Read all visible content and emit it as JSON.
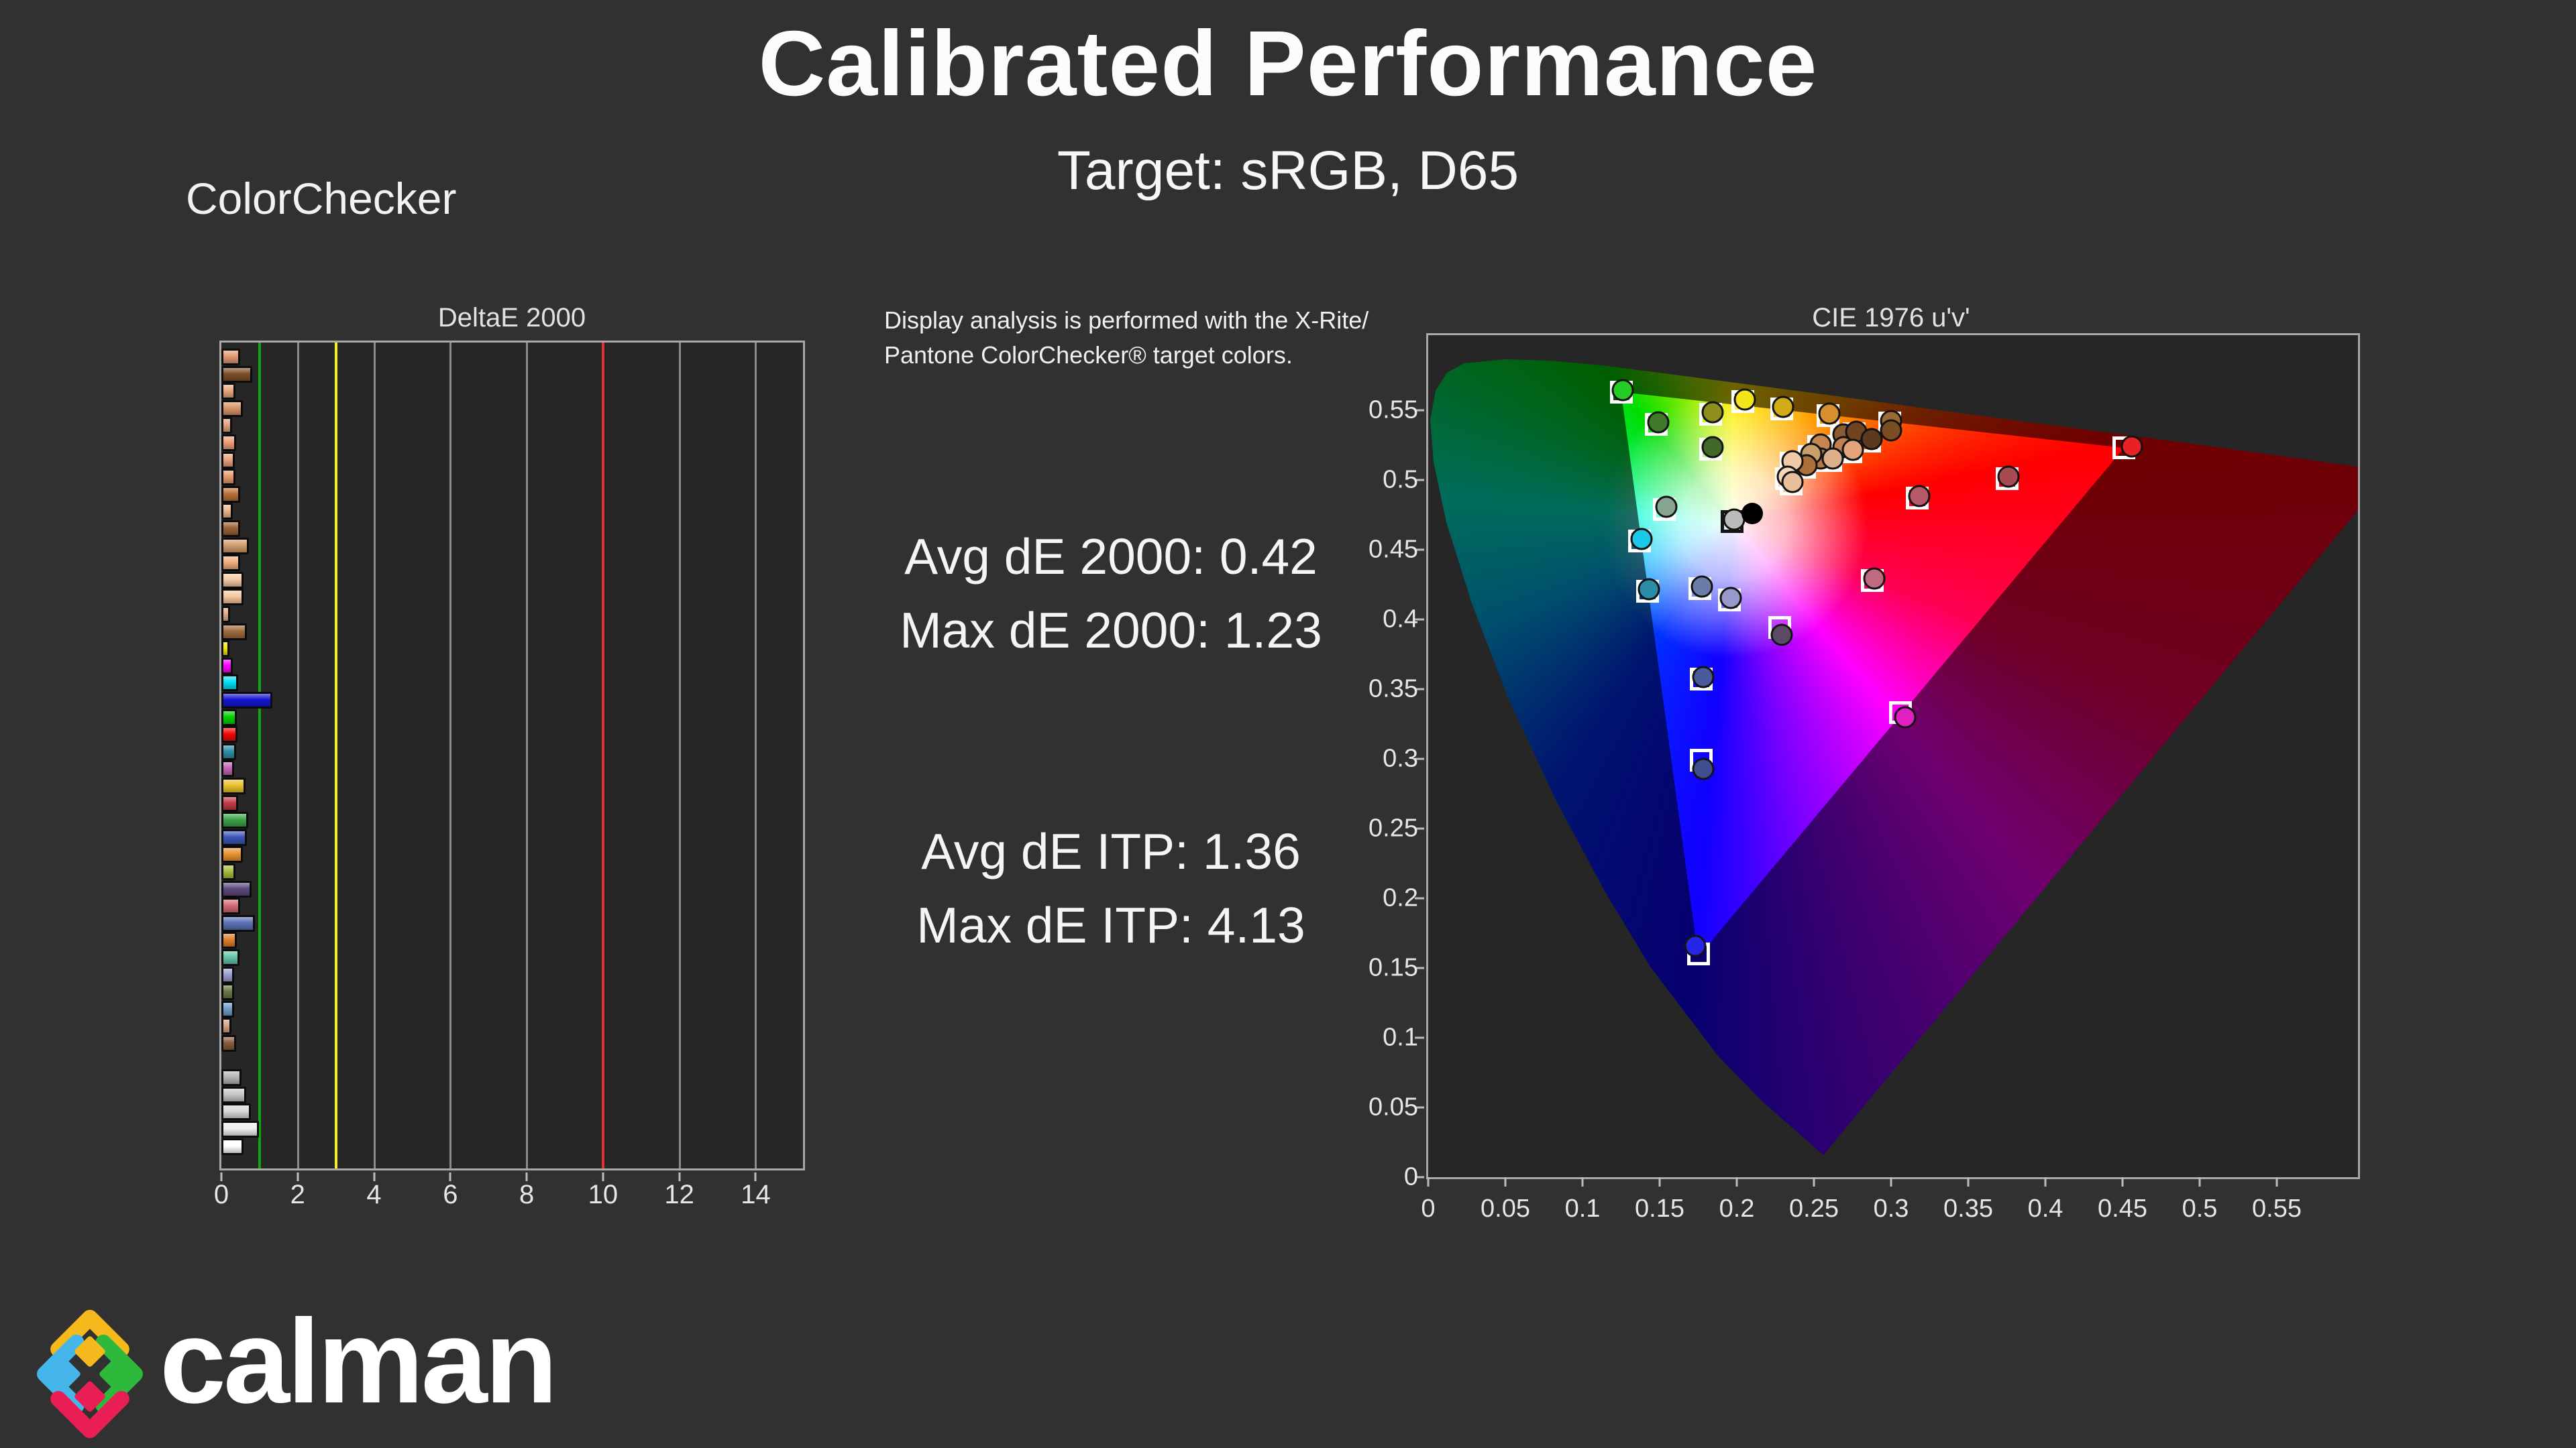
{
  "header": {
    "title": "Calibrated Performance",
    "subtitle": "Target: sRGB, D65",
    "section_label": "ColorChecker"
  },
  "note": {
    "line1": "Display analysis is performed with the X-Rite/",
    "line2": "Pantone ColorChecker® target colors."
  },
  "stats": {
    "lines": [
      {
        "text": "Avg dE 2000: 0.42"
      },
      {
        "text": "Max dE 2000: 1.23"
      },
      {
        "text": "Avg dE ITP: 1.36"
      },
      {
        "text": "Max dE ITP: 4.13"
      }
    ]
  },
  "colors": {
    "background": "#313131",
    "plot_background": "#262626",
    "grid": "#8a8a8a",
    "pass_line": "#12a312",
    "warn_line": "#f2f215",
    "fail_line": "#e03030"
  },
  "brand": {
    "wordmark": "calman"
  },
  "chart_data": [
    {
      "type": "bar",
      "title": "DeltaE 2000",
      "orientation": "horizontal",
      "xlim": [
        0,
        15.24
      ],
      "x_ticks": [
        0,
        2,
        4,
        6,
        8,
        10,
        12,
        14
      ],
      "grid": true,
      "reference_lines": [
        {
          "value": 1,
          "color": "#12a312"
        },
        {
          "value": 3,
          "color": "#f2f215"
        },
        {
          "value": 10,
          "color": "#e03030"
        }
      ],
      "gap_after_index": 40,
      "bars": [
        {
          "v": 0.39,
          "c": "#e09a6e"
        },
        {
          "v": 0.71,
          "c": "#7d4f28"
        },
        {
          "v": 0.26,
          "c": "#e9a87e"
        },
        {
          "v": 0.46,
          "c": "#d89468"
        },
        {
          "v": 0.17,
          "c": "#e2a478"
        },
        {
          "v": 0.28,
          "c": "#ef9f74"
        },
        {
          "v": 0.24,
          "c": "#e8a37a"
        },
        {
          "v": 0.27,
          "c": "#e59a6c"
        },
        {
          "v": 0.39,
          "c": "#bc7034"
        },
        {
          "v": 0.2,
          "c": "#ecb68e"
        },
        {
          "v": 0.38,
          "c": "#9a6233"
        },
        {
          "v": 0.62,
          "c": "#d19a6b"
        },
        {
          "v": 0.39,
          "c": "#f0ae80"
        },
        {
          "v": 0.47,
          "c": "#f3c8a4"
        },
        {
          "v": 0.47,
          "c": "#f4c69e"
        },
        {
          "v": 0.13,
          "c": "#e3ac86"
        },
        {
          "v": 0.56,
          "c": "#9e6a3c"
        },
        {
          "v": 0.1,
          "c": "#f6e800"
        },
        {
          "v": 0.2,
          "c": "#ff00ff"
        },
        {
          "v": 0.33,
          "c": "#00dff2"
        },
        {
          "v": 1.23,
          "c": "#1616d2"
        },
        {
          "v": 0.3,
          "c": "#00d200"
        },
        {
          "v": 0.32,
          "c": "#f60606"
        },
        {
          "v": 0.28,
          "c": "#2e8fa6"
        },
        {
          "v": 0.23,
          "c": "#c464b4"
        },
        {
          "v": 0.52,
          "c": "#e8c22a"
        },
        {
          "v": 0.34,
          "c": "#c23a48"
        },
        {
          "v": 0.6,
          "c": "#3fa24b"
        },
        {
          "v": 0.56,
          "c": "#3d56b8"
        },
        {
          "v": 0.45,
          "c": "#e89430"
        },
        {
          "v": 0.27,
          "c": "#a9bc3c"
        },
        {
          "v": 0.68,
          "c": "#5e4a7e"
        },
        {
          "v": 0.39,
          "c": "#d56a78"
        },
        {
          "v": 0.78,
          "c": "#5a71b8"
        },
        {
          "v": 0.3,
          "c": "#df7f28"
        },
        {
          "v": 0.37,
          "c": "#63c6a8"
        },
        {
          "v": 0.22,
          "c": "#9a9fd0"
        },
        {
          "v": 0.23,
          "c": "#6a7a42"
        },
        {
          "v": 0.23,
          "c": "#6f9dc8"
        },
        {
          "v": 0.16,
          "c": "#d8a584"
        },
        {
          "v": 0.28,
          "c": "#8a5c3c"
        },
        {
          "v": 0.43,
          "c": "#b5b5b5"
        },
        {
          "v": 0.54,
          "c": "#c6c6c6"
        },
        {
          "v": 0.67,
          "c": "#d9d9d9"
        },
        {
          "v": 0.88,
          "c": "#efefef"
        },
        {
          "v": 0.48,
          "c": "#ffffff"
        }
      ]
    },
    {
      "type": "scatter",
      "title": "CIE 1976 u'v'",
      "xlim": [
        0,
        0.6026
      ],
      "ylim": [
        0,
        0.6038
      ],
      "x_tick_labels": [
        "0",
        "0.05",
        "0.1",
        "0.15",
        "0.2",
        "0.25",
        "0.3",
        "0.35",
        "0.4",
        "0.45",
        "0.5",
        "0.55"
      ],
      "y_tick_labels": [
        "0",
        "0.05",
        "0.1",
        "0.15",
        "0.2",
        "0.25",
        "0.3",
        "0.35",
        "0.4",
        "0.45",
        "0.5",
        "0.55"
      ],
      "white_point": {
        "u": 0.1978,
        "v": 0.4683
      },
      "black_dot": {
        "u": 0.21,
        "v": 0.476
      },
      "srgb_triangle": {
        "r": [
          0.451,
          0.523
        ],
        "g": [
          0.125,
          0.563
        ],
        "b": [
          0.175,
          0.158
        ]
      },
      "points": [
        {
          "u": 0.125,
          "v": 0.563,
          "c": "#25cc25"
        },
        {
          "u": 0.148,
          "v": 0.54,
          "c": "#3f7a2a"
        },
        {
          "u": 0.183,
          "v": 0.547,
          "c": "#8f8f1e"
        },
        {
          "u": 0.204,
          "v": 0.556,
          "c": "#f2e419"
        },
        {
          "u": 0.229,
          "v": 0.551,
          "c": "#d2ab18"
        },
        {
          "u": 0.259,
          "v": 0.546,
          "c": "#d78e2e"
        },
        {
          "u": 0.299,
          "v": 0.541,
          "c": "#9a6a33",
          "c2": "#7a4e22"
        },
        {
          "u": 0.451,
          "v": 0.523,
          "c": "#e82222",
          "du": 0.005,
          "dv": 0.001
        },
        {
          "u": 0.183,
          "v": 0.522,
          "c": "#3f6a28"
        },
        {
          "u": 0.268,
          "v": 0.531,
          "c": "#8a5a30"
        },
        {
          "u": 0.276,
          "v": 0.533,
          "c": "#6e4423"
        },
        {
          "u": 0.286,
          "v": 0.528,
          "c": "#5c3a20"
        },
        {
          "u": 0.268,
          "v": 0.522,
          "c": "#c08050"
        },
        {
          "u": 0.274,
          "v": 0.52,
          "c": "#e2a478"
        },
        {
          "u": 0.253,
          "v": 0.524,
          "c": "#c4854f"
        },
        {
          "u": 0.253,
          "v": 0.514,
          "c": "#b57842"
        },
        {
          "u": 0.247,
          "v": 0.517,
          "c": "#caa06a"
        },
        {
          "u": 0.244,
          "v": 0.509,
          "c": "#ad7038"
        },
        {
          "u": 0.261,
          "v": 0.514,
          "c": "#deb08a"
        },
        {
          "u": 0.235,
          "v": 0.512,
          "c": "#f0c9a6"
        },
        {
          "u": 0.232,
          "v": 0.501,
          "c": "#f6d7ba"
        },
        {
          "u": 0.235,
          "v": 0.497,
          "c": "#e8c09c"
        },
        {
          "u": 0.375,
          "v": 0.501,
          "c": "#a84a52"
        },
        {
          "u": 0.317,
          "v": 0.487,
          "c": "#b55a66"
        },
        {
          "u": 0.153,
          "v": 0.479,
          "c": "#86a492"
        },
        {
          "u": 0.197,
          "v": 0.47,
          "c": "#bbbbbb",
          "square": "black"
        },
        {
          "u": 0.137,
          "v": 0.456,
          "c": "#1ac8e8"
        },
        {
          "u": 0.142,
          "v": 0.42,
          "c": "#2a8ca6"
        },
        {
          "u": 0.176,
          "v": 0.422,
          "c": "#6a7ca8"
        },
        {
          "u": 0.195,
          "v": 0.414,
          "c": "#9898cc"
        },
        {
          "u": 0.228,
          "v": 0.394,
          "c": "#5a4a66",
          "dv": -0.005
        },
        {
          "u": 0.288,
          "v": 0.428,
          "c": "#c06a80"
        },
        {
          "u": 0.177,
          "v": 0.357,
          "c": "#4a5a9a"
        },
        {
          "u": 0.306,
          "v": 0.333,
          "c": "#e020c0",
          "du": 0.003,
          "dv": -0.003
        },
        {
          "u": 0.177,
          "v": 0.299,
          "c": "#404e90",
          "dv": -0.006
        },
        {
          "u": 0.175,
          "v": 0.16,
          "c": "#2626e6",
          "du": -0.002,
          "dv": 0.006
        }
      ]
    }
  ]
}
